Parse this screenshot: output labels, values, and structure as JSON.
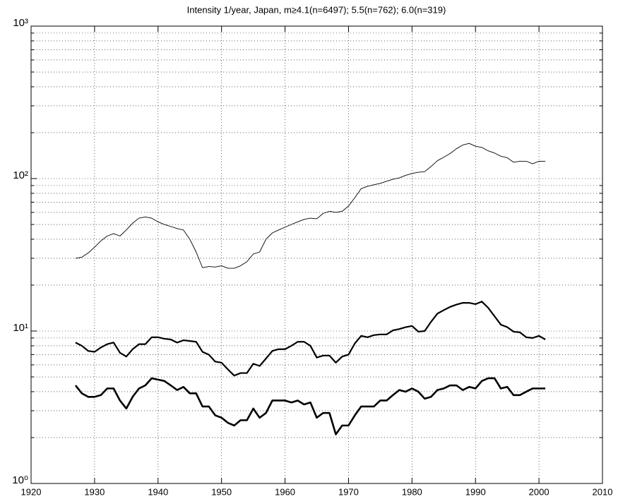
{
  "chart_data": {
    "type": "line",
    "title": "Intensity 1/year, Japan, m≥4.1(n=6497); 5.5(n=762); 6.0(n=319)",
    "x": [
      1927,
      1928,
      1929,
      1930,
      1931,
      1932,
      1933,
      1934,
      1935,
      1936,
      1937,
      1938,
      1939,
      1940,
      1941,
      1942,
      1943,
      1944,
      1945,
      1946,
      1947,
      1948,
      1949,
      1950,
      1951,
      1952,
      1953,
      1954,
      1955,
      1956,
      1957,
      1958,
      1959,
      1960,
      1961,
      1962,
      1963,
      1964,
      1965,
      1966,
      1967,
      1968,
      1969,
      1970,
      1971,
      1972,
      1973,
      1974,
      1975,
      1976,
      1977,
      1978,
      1979,
      1980,
      1981,
      1982,
      1983,
      1984,
      1985,
      1986,
      1987,
      1988,
      1989,
      1990,
      1991,
      1992,
      1993,
      1994,
      1995,
      1996,
      1997,
      1998,
      1999,
      2000,
      2001
    ],
    "series": [
      {
        "color": "#000000",
        "line_width": 0.9,
        "values": [
          30,
          30.5,
          32.5,
          35.5,
          39,
          42,
          43.5,
          42,
          46,
          51,
          55,
          56,
          55,
          52,
          50,
          48.5,
          47,
          46,
          40,
          33,
          26,
          26.5,
          26.3,
          26.8,
          25.8,
          25.8,
          26.8,
          28.5,
          32,
          33,
          40,
          44,
          46,
          48,
          50,
          52,
          54,
          55,
          54.5,
          59,
          61,
          60,
          61,
          66,
          75,
          86,
          89,
          91,
          93,
          96,
          99,
          101,
          105,
          108,
          110,
          111,
          120,
          131,
          138,
          146,
          157,
          166,
          170,
          163,
          160,
          152,
          147,
          140,
          137,
          128,
          130,
          130,
          125,
          130,
          130
        ]
      },
      {
        "color": "#000000",
        "line_width": 2.2,
        "values": [
          8.4,
          8.0,
          7.4,
          7.3,
          7.8,
          8.2,
          8.4,
          7.2,
          6.8,
          7.6,
          8.2,
          8.2,
          9.1,
          9.1,
          8.9,
          8.8,
          8.4,
          8.7,
          8.6,
          8.5,
          7.3,
          7.0,
          6.3,
          6.2,
          5.6,
          5.1,
          5.3,
          5.3,
          6.1,
          5.9,
          6.6,
          7.4,
          7.6,
          7.6,
          8.0,
          8.5,
          8.5,
          8.0,
          6.7,
          6.9,
          6.9,
          6.2,
          6.8,
          7.0,
          8.3,
          9.3,
          9.1,
          9.4,
          9.5,
          9.5,
          10.1,
          10.3,
          10.6,
          10.8,
          9.9,
          10.0,
          11.5,
          13.0,
          13.7,
          14.4,
          14.9,
          15.3,
          15.3,
          15.0,
          15.6,
          14.2,
          12.5,
          11.0,
          10.6,
          9.9,
          9.8,
          9.1,
          9.0,
          9.3,
          8.8
        ]
      },
      {
        "color": "#000000",
        "line_width": 2.6,
        "values": [
          4.4,
          3.9,
          3.7,
          3.7,
          3.8,
          4.2,
          4.2,
          3.5,
          3.1,
          3.7,
          4.2,
          4.4,
          4.9,
          4.8,
          4.7,
          4.4,
          4.1,
          4.3,
          3.9,
          3.9,
          3.2,
          3.2,
          2.8,
          2.7,
          2.5,
          2.4,
          2.6,
          2.6,
          3.1,
          2.7,
          2.9,
          3.5,
          3.5,
          3.5,
          3.4,
          3.5,
          3.3,
          3.4,
          2.7,
          2.9,
          2.9,
          2.1,
          2.4,
          2.4,
          2.8,
          3.2,
          3.2,
          3.2,
          3.5,
          3.5,
          3.8,
          4.1,
          4.0,
          4.2,
          4.0,
          3.6,
          3.7,
          4.1,
          4.2,
          4.4,
          4.4,
          4.1,
          4.3,
          4.2,
          4.7,
          4.9,
          4.9,
          4.2,
          4.3,
          3.8,
          3.8,
          4.0,
          4.2,
          4.2,
          4.2
        ]
      }
    ],
    "xlim": [
      1920,
      2010
    ],
    "xticks": [
      1920,
      1930,
      1940,
      1950,
      1960,
      1970,
      1980,
      1990,
      2000,
      2010
    ],
    "ylim": [
      1,
      1000
    ],
    "yticks": [
      {
        "value": 1,
        "label": "10⁰"
      },
      {
        "value": 10,
        "label": "10¹"
      },
      {
        "value": 100,
        "label": "10²"
      },
      {
        "value": 1000,
        "label": "10³"
      }
    ],
    "y_scale": "log",
    "grid": true,
    "minor_grid": true
  }
}
